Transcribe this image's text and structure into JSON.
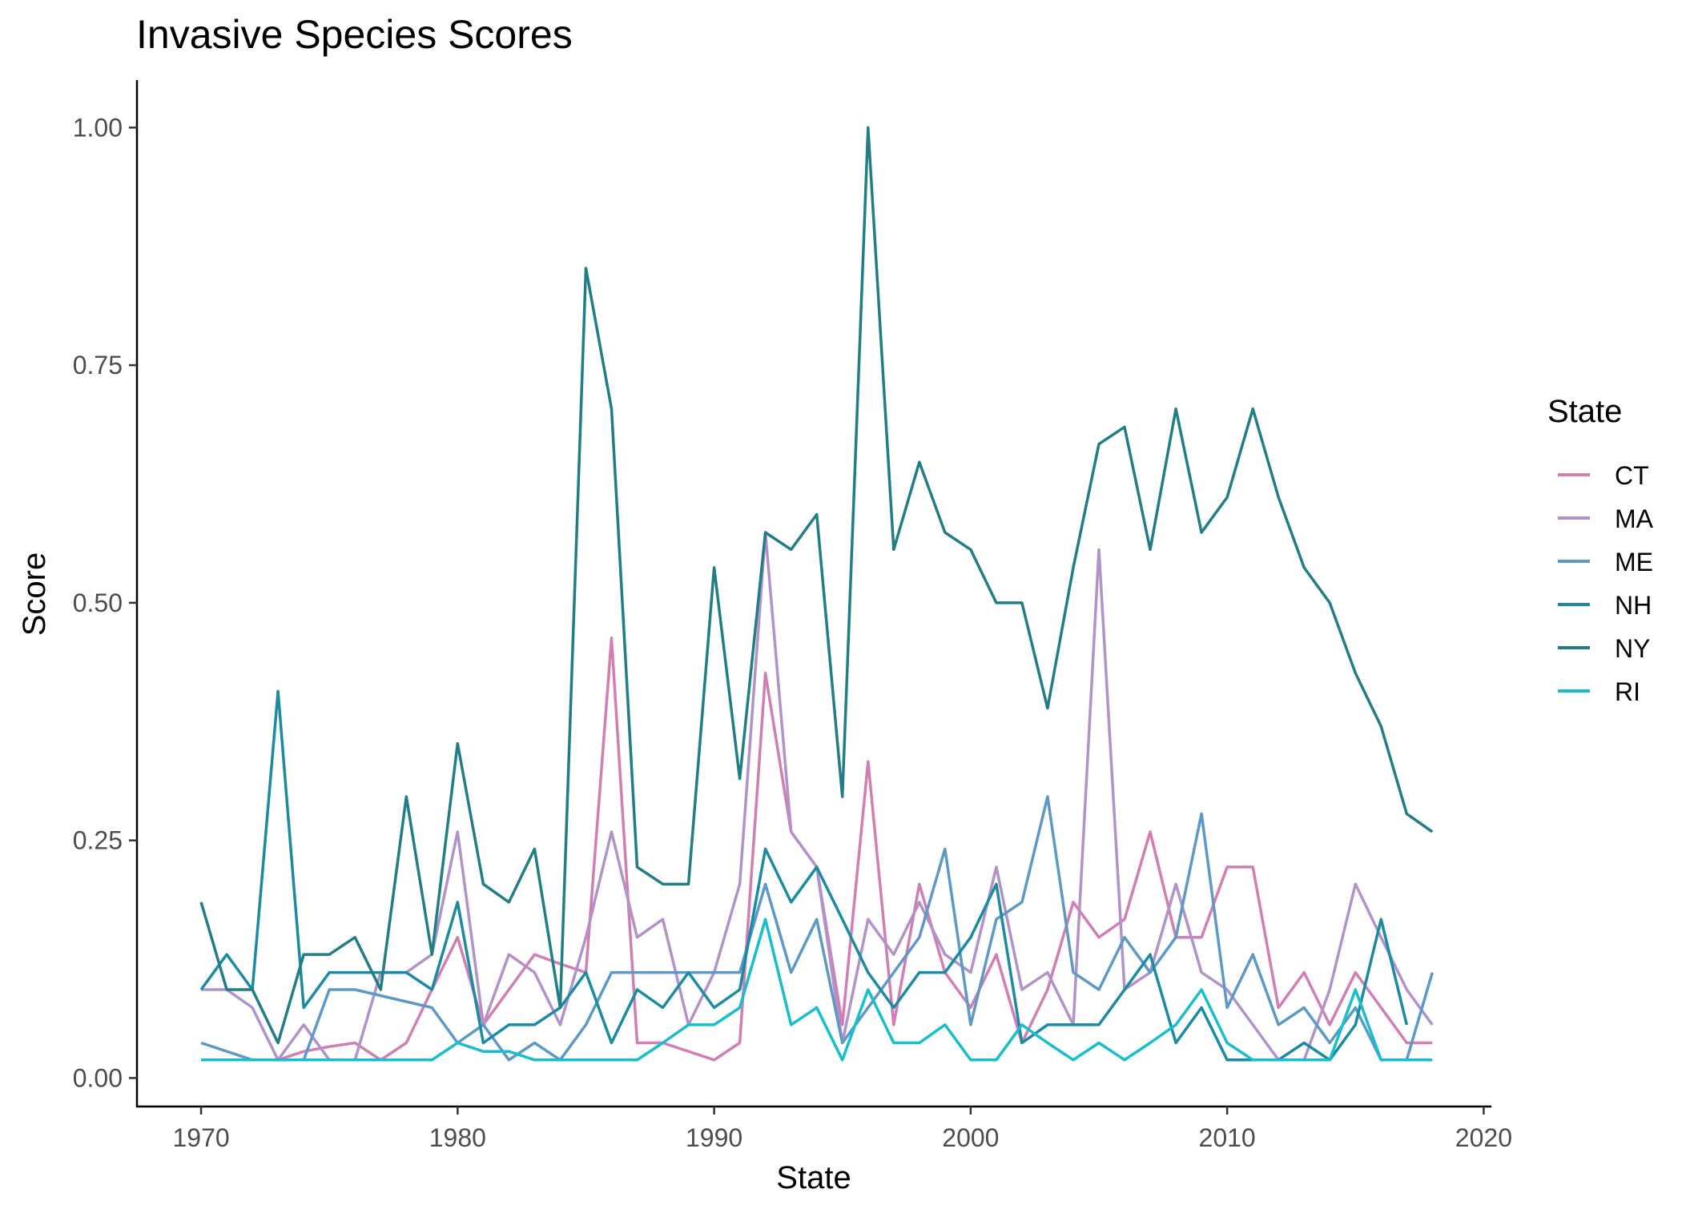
{
  "chart_data": {
    "type": "line",
    "title": "Invasive Species Scores",
    "xlabel": "State",
    "ylabel": "Score",
    "xlim": [
      1967.5,
      2020.3
    ],
    "ylim": [
      -0.03,
      1.05
    ],
    "x_ticks": [
      1970,
      1980,
      1990,
      2000,
      2010,
      2020
    ],
    "x_tick_labels": [
      "1970",
      "1980",
      "1990",
      "2000",
      "2010",
      "2020"
    ],
    "y_ticks": [
      0,
      0.25,
      0.5,
      0.75,
      1.0
    ],
    "y_tick_labels": [
      "0.00",
      "0.25",
      "0.50",
      "0.75",
      "1.00"
    ],
    "grid": false,
    "legend": {
      "title": "State",
      "position": "right"
    },
    "series": [
      {
        "name": "CT",
        "color": "#d27eb3",
        "x": [
          1970,
          1971,
          1972,
          1973,
          1974,
          1975,
          1976,
          1977,
          1978,
          1979,
          1980,
          1981,
          1982,
          1983,
          1984,
          1985,
          1986,
          1987,
          1988,
          1989,
          1990,
          1991,
          1992,
          1993,
          1994,
          1995,
          1996,
          1997,
          1998,
          1999,
          2000,
          2001,
          2002,
          2003,
          2004,
          2005,
          2006,
          2007,
          2008,
          2009,
          2010,
          2011,
          2012,
          2013,
          2014,
          2015,
          2016,
          2017,
          2018
        ],
        "y": [
          0.019,
          0.019,
          0.019,
          0.019,
          0.028,
          0.033,
          0.037,
          0.019,
          0.037,
          0.093,
          0.148,
          0.056,
          0.093,
          0.13,
          0.12,
          0.111,
          0.463,
          0.037,
          0.037,
          0.028,
          0.019,
          0.037,
          0.426,
          0.259,
          0.222,
          0.056,
          0.333,
          0.056,
          0.204,
          0.111,
          0.074,
          0.13,
          0.037,
          0.093,
          0.185,
          0.148,
          0.167,
          0.259,
          0.148,
          0.148,
          0.222,
          0.222,
          0.074,
          0.111,
          0.056,
          0.111,
          0.074,
          0.037,
          0.037
        ]
      },
      {
        "name": "MA",
        "color": "#b192c9",
        "x": [
          1970,
          1971,
          1972,
          1973,
          1974,
          1975,
          1976,
          1977,
          1978,
          1979,
          1980,
          1981,
          1982,
          1983,
          1984,
          1985,
          1986,
          1987,
          1988,
          1989,
          1990,
          1991,
          1992,
          1993,
          1994,
          1995,
          1996,
          1997,
          1998,
          1999,
          2000,
          2001,
          2002,
          2003,
          2004,
          2005,
          2006,
          2007,
          2008,
          2009,
          2010,
          2011,
          2012,
          2013,
          2014,
          2015,
          2016,
          2017,
          2018
        ],
        "y": [
          0.093,
          0.093,
          0.074,
          0.019,
          0.056,
          0.019,
          0.019,
          0.111,
          0.111,
          0.13,
          0.259,
          0.056,
          0.13,
          0.111,
          0.056,
          0.148,
          0.259,
          0.148,
          0.167,
          0.056,
          0.111,
          0.204,
          0.574,
          0.259,
          0.222,
          0.037,
          0.167,
          0.13,
          0.185,
          0.13,
          0.111,
          0.222,
          0.093,
          0.111,
          0.056,
          0.556,
          0.093,
          0.111,
          0.204,
          0.111,
          0.093,
          0.056,
          0.019,
          0.019,
          0.093,
          0.204,
          0.148,
          0.093,
          0.056
        ]
      },
      {
        "name": "ME",
        "color": "#5d99c6",
        "x": [
          1970,
          1972,
          1974,
          1975,
          1976,
          1979,
          1980,
          1981,
          1982,
          1983,
          1984,
          1985,
          1986,
          1987,
          1988,
          1989,
          1990,
          1991,
          1992,
          1993,
          1994,
          1995,
          1996,
          1997,
          1998,
          1999,
          2000,
          2001,
          2002,
          2003,
          2004,
          2005,
          2006,
          2007,
          2008,
          2009,
          2010,
          2011,
          2012,
          2013,
          2014,
          2015,
          2016,
          2017,
          2018
        ],
        "y": [
          0.037,
          0.019,
          0.019,
          0.093,
          0.093,
          0.074,
          0.037,
          0.056,
          0.019,
          0.037,
          0.019,
          0.056,
          0.111,
          0.111,
          0.111,
          0.111,
          0.111,
          0.111,
          0.204,
          0.111,
          0.167,
          0.037,
          0.074,
          0.111,
          0.148,
          0.241,
          0.056,
          0.167,
          0.185,
          0.296,
          0.111,
          0.093,
          0.148,
          0.111,
          0.148,
          0.278,
          0.074,
          0.13,
          0.056,
          0.074,
          0.037,
          0.074,
          0.019,
          0.019,
          0.111
        ]
      },
      {
        "name": "NH",
        "color": "#1a8ba3",
        "x": [
          1970,
          1971,
          1972,
          1973,
          1974,
          1975,
          1976,
          1977,
          1978,
          1979,
          1980,
          1981,
          1982,
          1983,
          1984,
          1985,
          1986,
          1987,
          1988,
          1989,
          1990,
          1991,
          1992,
          1993,
          1994,
          1995,
          1996,
          1997,
          1998,
          1999,
          2000,
          2001,
          2002,
          2003,
          2004,
          2005,
          2006,
          2007,
          2008,
          2009,
          2010,
          2011,
          2012,
          2013,
          2014,
          2015,
          2016,
          2017
        ],
        "y": [
          0.093,
          0.13,
          0.093,
          0.407,
          0.074,
          0.111,
          0.111,
          0.111,
          0.111,
          0.093,
          0.185,
          0.037,
          0.056,
          0.056,
          0.074,
          0.111,
          0.037,
          0.093,
          0.074,
          0.111,
          0.074,
          0.093,
          0.241,
          0.185,
          0.222,
          0.167,
          0.111,
          0.074,
          0.111,
          0.111,
          0.148,
          0.204,
          0.037,
          0.056,
          0.056,
          0.056,
          0.093,
          0.13,
          0.037,
          0.074,
          0.019,
          0.019,
          0.019,
          0.037,
          0.019,
          0.056,
          0.167,
          0.056
        ]
      },
      {
        "name": "NY",
        "color": "#217d86",
        "x": [
          1970,
          1971,
          1972,
          1973,
          1974,
          1975,
          1976,
          1977,
          1978,
          1979,
          1980,
          1981,
          1982,
          1983,
          1984,
          1985,
          1986,
          1987,
          1988,
          1989,
          1990,
          1991,
          1992,
          1993,
          1994,
          1995,
          1996,
          1997,
          1998,
          1999,
          2000,
          2001,
          2002,
          2003,
          2004,
          2005,
          2006,
          2007,
          2008,
          2009,
          2010,
          2011,
          2012,
          2013,
          2014,
          2015,
          2016,
          2017,
          2018
        ],
        "y": [
          0.185,
          0.093,
          0.093,
          0.037,
          0.13,
          0.13,
          0.148,
          0.093,
          0.296,
          0.13,
          0.352,
          0.204,
          0.185,
          0.241,
          0.074,
          0.852,
          0.704,
          0.222,
          0.204,
          0.204,
          0.537,
          0.315,
          0.574,
          0.556,
          0.593,
          0.296,
          1.0,
          0.556,
          0.648,
          0.574,
          0.556,
          0.5,
          0.5,
          0.389,
          0.537,
          0.667,
          0.685,
          0.556,
          0.704,
          0.574,
          0.611,
          0.704,
          0.611,
          0.537,
          0.5,
          0.426,
          0.37,
          0.278,
          0.259
        ]
      },
      {
        "name": "RI",
        "color": "#17becb",
        "x": [
          1970,
          1971,
          1972,
          1973,
          1974,
          1975,
          1976,
          1977,
          1978,
          1979,
          1980,
          1981,
          1982,
          1983,
          1984,
          1985,
          1986,
          1987,
          1988,
          1989,
          1990,
          1991,
          1992,
          1993,
          1994,
          1995,
          1996,
          1997,
          1998,
          1999,
          2000,
          2001,
          2002,
          2003,
          2004,
          2005,
          2006,
          2007,
          2008,
          2009,
          2010,
          2011,
          2012,
          2013,
          2014,
          2015,
          2016,
          2017,
          2018
        ],
        "y": [
          0.019,
          0.019,
          0.019,
          0.019,
          0.019,
          0.019,
          0.019,
          0.019,
          0.019,
          0.019,
          0.037,
          0.028,
          0.028,
          0.019,
          0.019,
          0.019,
          0.019,
          0.019,
          0.037,
          0.056,
          0.056,
          0.074,
          0.167,
          0.056,
          0.074,
          0.019,
          0.093,
          0.037,
          0.037,
          0.056,
          0.019,
          0.019,
          0.056,
          0.037,
          0.019,
          0.037,
          0.019,
          0.037,
          0.056,
          0.093,
          0.037,
          0.019,
          0.019,
          0.019,
          0.019,
          0.093,
          0.019,
          0.019,
          0.019
        ]
      }
    ]
  }
}
